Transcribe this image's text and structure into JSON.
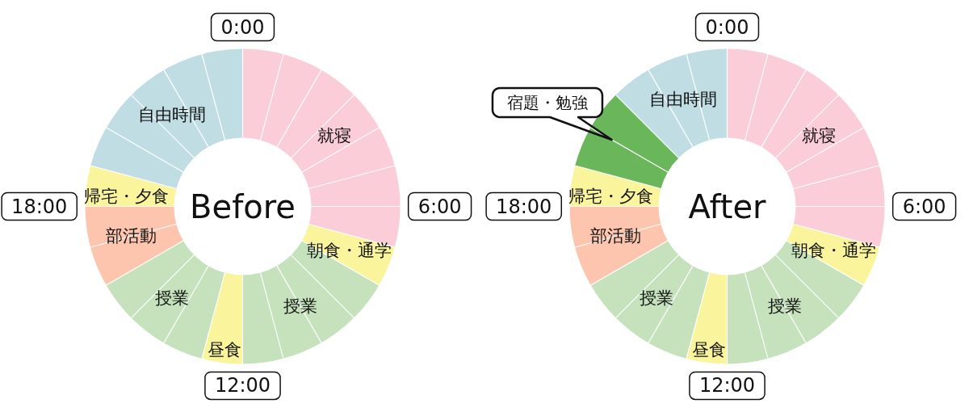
{
  "chart_data": [
    {
      "type": "donut",
      "title": "Before",
      "categories": [
        "就寝",
        "朝食・通学",
        "授業",
        "昼食",
        "授業",
        "部活動",
        "帰宅・夕食",
        "自由時間"
      ],
      "values": [
        29.16,
        4.17,
        16.67,
        4.17,
        12.5,
        8.33,
        4.17,
        20.83
      ],
      "colors": [
        "#fbcdd9",
        "#faf59d",
        "#c5e2bd",
        "#faf59d",
        "#c5e2bd",
        "#fdc4ae",
        "#faf59d",
        "#c0dde4"
      ],
      "annotations": [
        "0:00",
        "6:00",
        "12:00",
        "18:00"
      ],
      "grid": true
    },
    {
      "type": "donut",
      "title": "After",
      "categories": [
        "就寝",
        "朝食・通学",
        "授業",
        "昼食",
        "授業",
        "部活動",
        "帰宅・夕食",
        "宿題・勉強",
        "自由時間"
      ],
      "values": [
        29.16,
        4.17,
        16.67,
        4.17,
        12.5,
        8.33,
        4.17,
        8.33,
        12.5
      ],
      "colors": [
        "#fbcdd9",
        "#faf59d",
        "#c5e2bd",
        "#faf59d",
        "#c5e2bd",
        "#fdc4ae",
        "#faf59d",
        "#6ab65b",
        "#c0dde4"
      ],
      "annotations": [
        "0:00",
        "6:00",
        "12:00",
        "18:00"
      ],
      "grid": true
    }
  ]
}
